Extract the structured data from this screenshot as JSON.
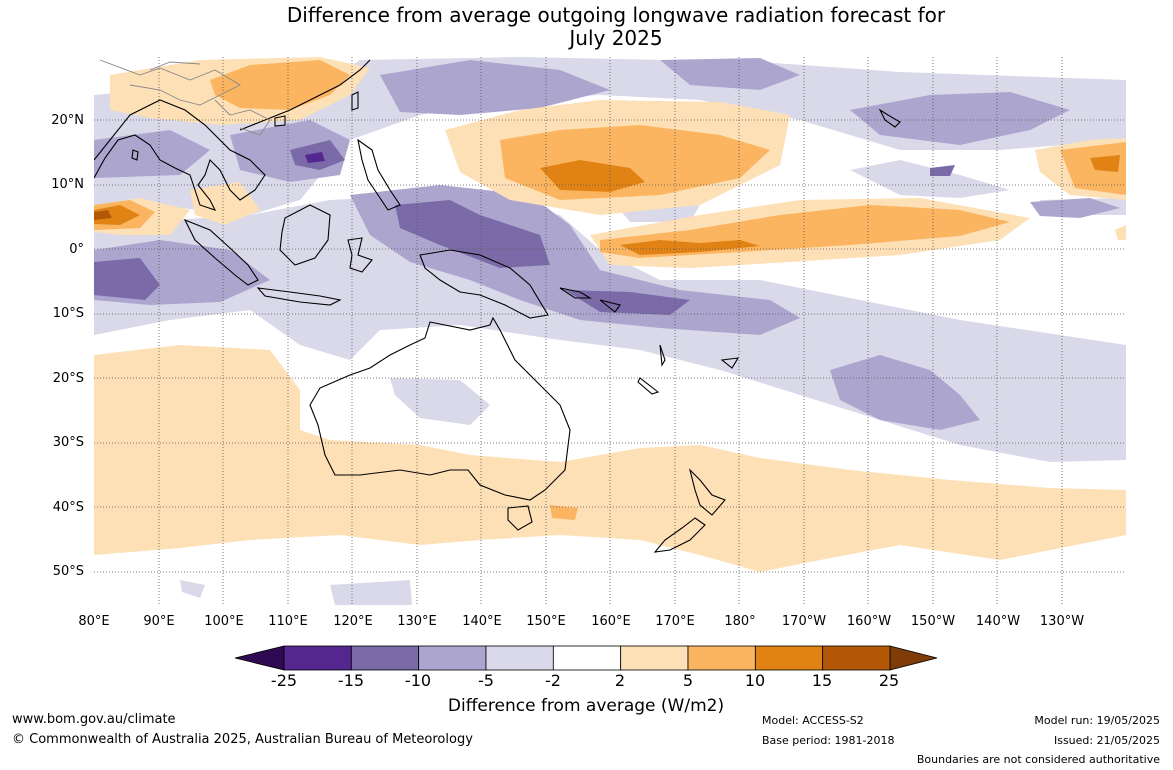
{
  "title_line1": "Difference from average outgoing longwave radiation forecast for",
  "title_line2": "July 2025",
  "lat_labels": [
    "20°N",
    "10°N",
    "0°",
    "10°S",
    "20°S",
    "30°S",
    "40°S",
    "50°S"
  ],
  "lon_labels": [
    "80°E",
    "90°E",
    "100°E",
    "110°E",
    "120°E",
    "130°E",
    "140°E",
    "150°E",
    "160°E",
    "170°E",
    "180°",
    "170°W",
    "160°W",
    "150°W",
    "140°W",
    "130°W"
  ],
  "colorbar": {
    "title": "Difference from average (W/m2)",
    "tick_labels": [
      "-25",
      "-15",
      "-10",
      "-5",
      "-2",
      "2",
      "5",
      "10",
      "15",
      "25"
    ],
    "colors": [
      "#2d0a52",
      "#54278f",
      "#7a6aa8",
      "#aca6cf",
      "#d9d9ea",
      "#ffffff",
      "#fee0b6",
      "#fbb561",
      "#e08214",
      "#b35806",
      "#7f3b08"
    ]
  },
  "footer": {
    "website": "www.bom.gov.au/climate",
    "copyright": "© Commonwealth of Australia 2025, Australian Bureau of Meteorology",
    "model": "Model: ACCESS-S2",
    "base_period": "Base period: 1981-2018",
    "model_run": "Model run: 19/05/2025",
    "issued": "Issued: 21/05/2025",
    "disclaimer": "Boundaries are not considered authoritative"
  }
}
